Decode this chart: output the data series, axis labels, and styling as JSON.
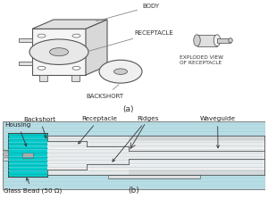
{
  "fig_width": 3.0,
  "fig_height": 2.23,
  "dpi": 100,
  "panel_a": {
    "label": "(a)",
    "body_label": "BODY",
    "receptacle_label": "RECEPTACLE",
    "backshort_label": "BACKSHORT",
    "exploded_label": "EXPLODED VIEW\nOF RECEPTACLE"
  },
  "panel_b": {
    "label": "(b)",
    "bg_color": "#b8dde4",
    "housing_color": "#00cccc",
    "labels": {
      "backshort": "Backshort",
      "housing": "Housing",
      "glass_bead": "Glass Bead (50 Ω)",
      "receptacle": "Receptacle",
      "ridges": "Ridges",
      "waveguide": "Waveguide"
    }
  }
}
